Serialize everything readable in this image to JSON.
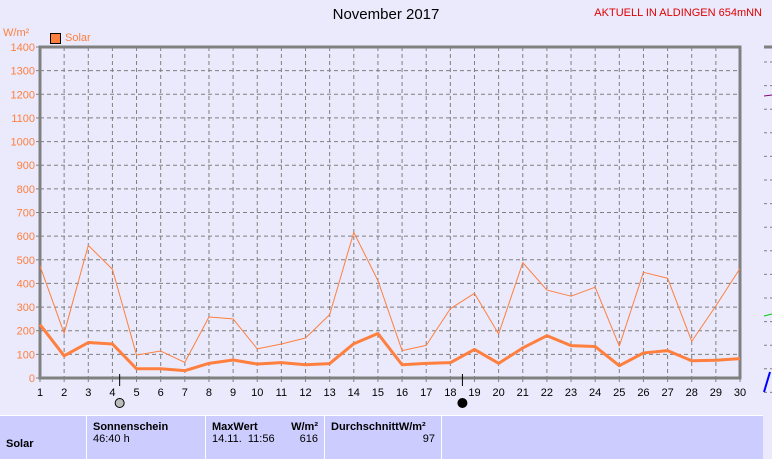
{
  "title": "November 2017",
  "station": "AKTUELL IN ALDINGEN 654mNN",
  "colors": {
    "series": "#ff7f3f",
    "grid": "#808080",
    "background": "#eaeafc",
    "table": "#ccccff"
  },
  "chart_data": {
    "type": "line",
    "title": "November 2017",
    "ylabel": "W/m²",
    "ylim": [
      0,
      1400
    ],
    "yticks": [
      0,
      100,
      200,
      300,
      400,
      500,
      600,
      700,
      800,
      900,
      1000,
      1100,
      1200,
      1300,
      1400
    ],
    "x": [
      1,
      2,
      3,
      4,
      5,
      6,
      7,
      8,
      9,
      10,
      11,
      12,
      13,
      14,
      15,
      16,
      17,
      18,
      19,
      20,
      21,
      22,
      23,
      24,
      25,
      26,
      27,
      28,
      29,
      30
    ],
    "grid": true,
    "legend": {
      "label": "Solar",
      "placement": "top-left"
    },
    "series": [
      {
        "style": "thin",
        "values": [
          474,
          189,
          561,
          460,
          97,
          114,
          66,
          258,
          250,
          123,
          144,
          169,
          268,
          616,
          412,
          116,
          138,
          293,
          358,
          186,
          488,
          372,
          346,
          384,
          135,
          447,
          422,
          155,
          305,
          463
        ]
      },
      {
        "style": "thick",
        "values": [
          226,
          94,
          150,
          144,
          39,
          39,
          31,
          62,
          76,
          59,
          65,
          56,
          61,
          145,
          188,
          56,
          62,
          65,
          121,
          62,
          127,
          179,
          137,
          133,
          52,
          106,
          116,
          73,
          75,
          82
        ]
      }
    ],
    "moon_phases": [
      {
        "x": 4.3,
        "phase": "new-moon"
      },
      {
        "x": 18.5,
        "phase": "full-moon"
      }
    ]
  },
  "table": {
    "row_label": "Solar",
    "sunshine_label": "Sonnenschein",
    "sunshine_value": "46:40 h",
    "max_label": "MaxWert",
    "max_unit": "W/m²",
    "max_time": "14.11.  11:56",
    "max_value": "616",
    "avg_label": "DurchschnittW/m²",
    "avg_value": "97"
  }
}
